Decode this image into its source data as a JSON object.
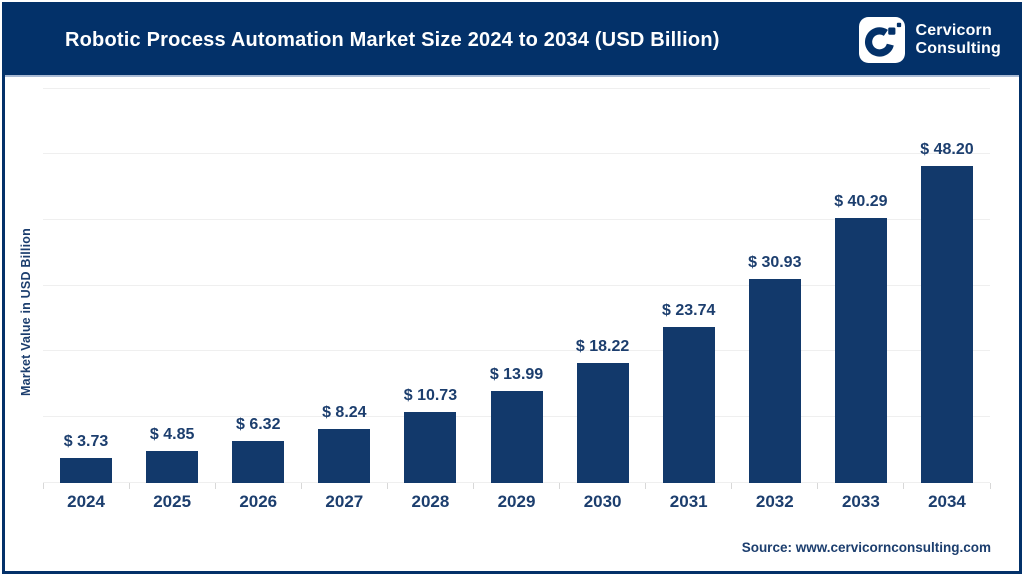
{
  "header": {
    "title": "Robotic Process Automation Market Size 2024 to 2034 (USD Billion)",
    "logo": {
      "icon": "cervicorn-c-mark",
      "line1": "Cervicorn",
      "line2": "Consulting"
    }
  },
  "chart_data": {
    "type": "bar",
    "title": "Robotic Process Automation Market Size 2024 to 2034 (USD Billion)",
    "categories": [
      "2024",
      "2025",
      "2026",
      "2027",
      "2028",
      "2029",
      "2030",
      "2031",
      "2032",
      "2033",
      "2034"
    ],
    "values": [
      3.73,
      4.85,
      6.32,
      8.24,
      10.73,
      13.99,
      18.22,
      23.74,
      30.93,
      40.29,
      48.2
    ],
    "value_prefix": "$ ",
    "value_decimals": 2,
    "xlabel": "",
    "ylabel": "Market Value in USD Billion",
    "ylim": [
      0,
      60
    ],
    "ytick_step": 10,
    "y_tick_labels_visible": false,
    "grid": true,
    "legend": "none",
    "bar_color": "#12396b",
    "label_color": "#1c3e6e",
    "background": "#ffffff"
  },
  "footer": {
    "source": "Source: www.cervicornconsulting.com"
  },
  "colors": {
    "header_navy": "#033169",
    "bar_navy": "#12396b",
    "text_navy": "#1c3e6e",
    "gridline": "#efefef",
    "separator": "#a9bad4",
    "white": "#ffffff"
  }
}
